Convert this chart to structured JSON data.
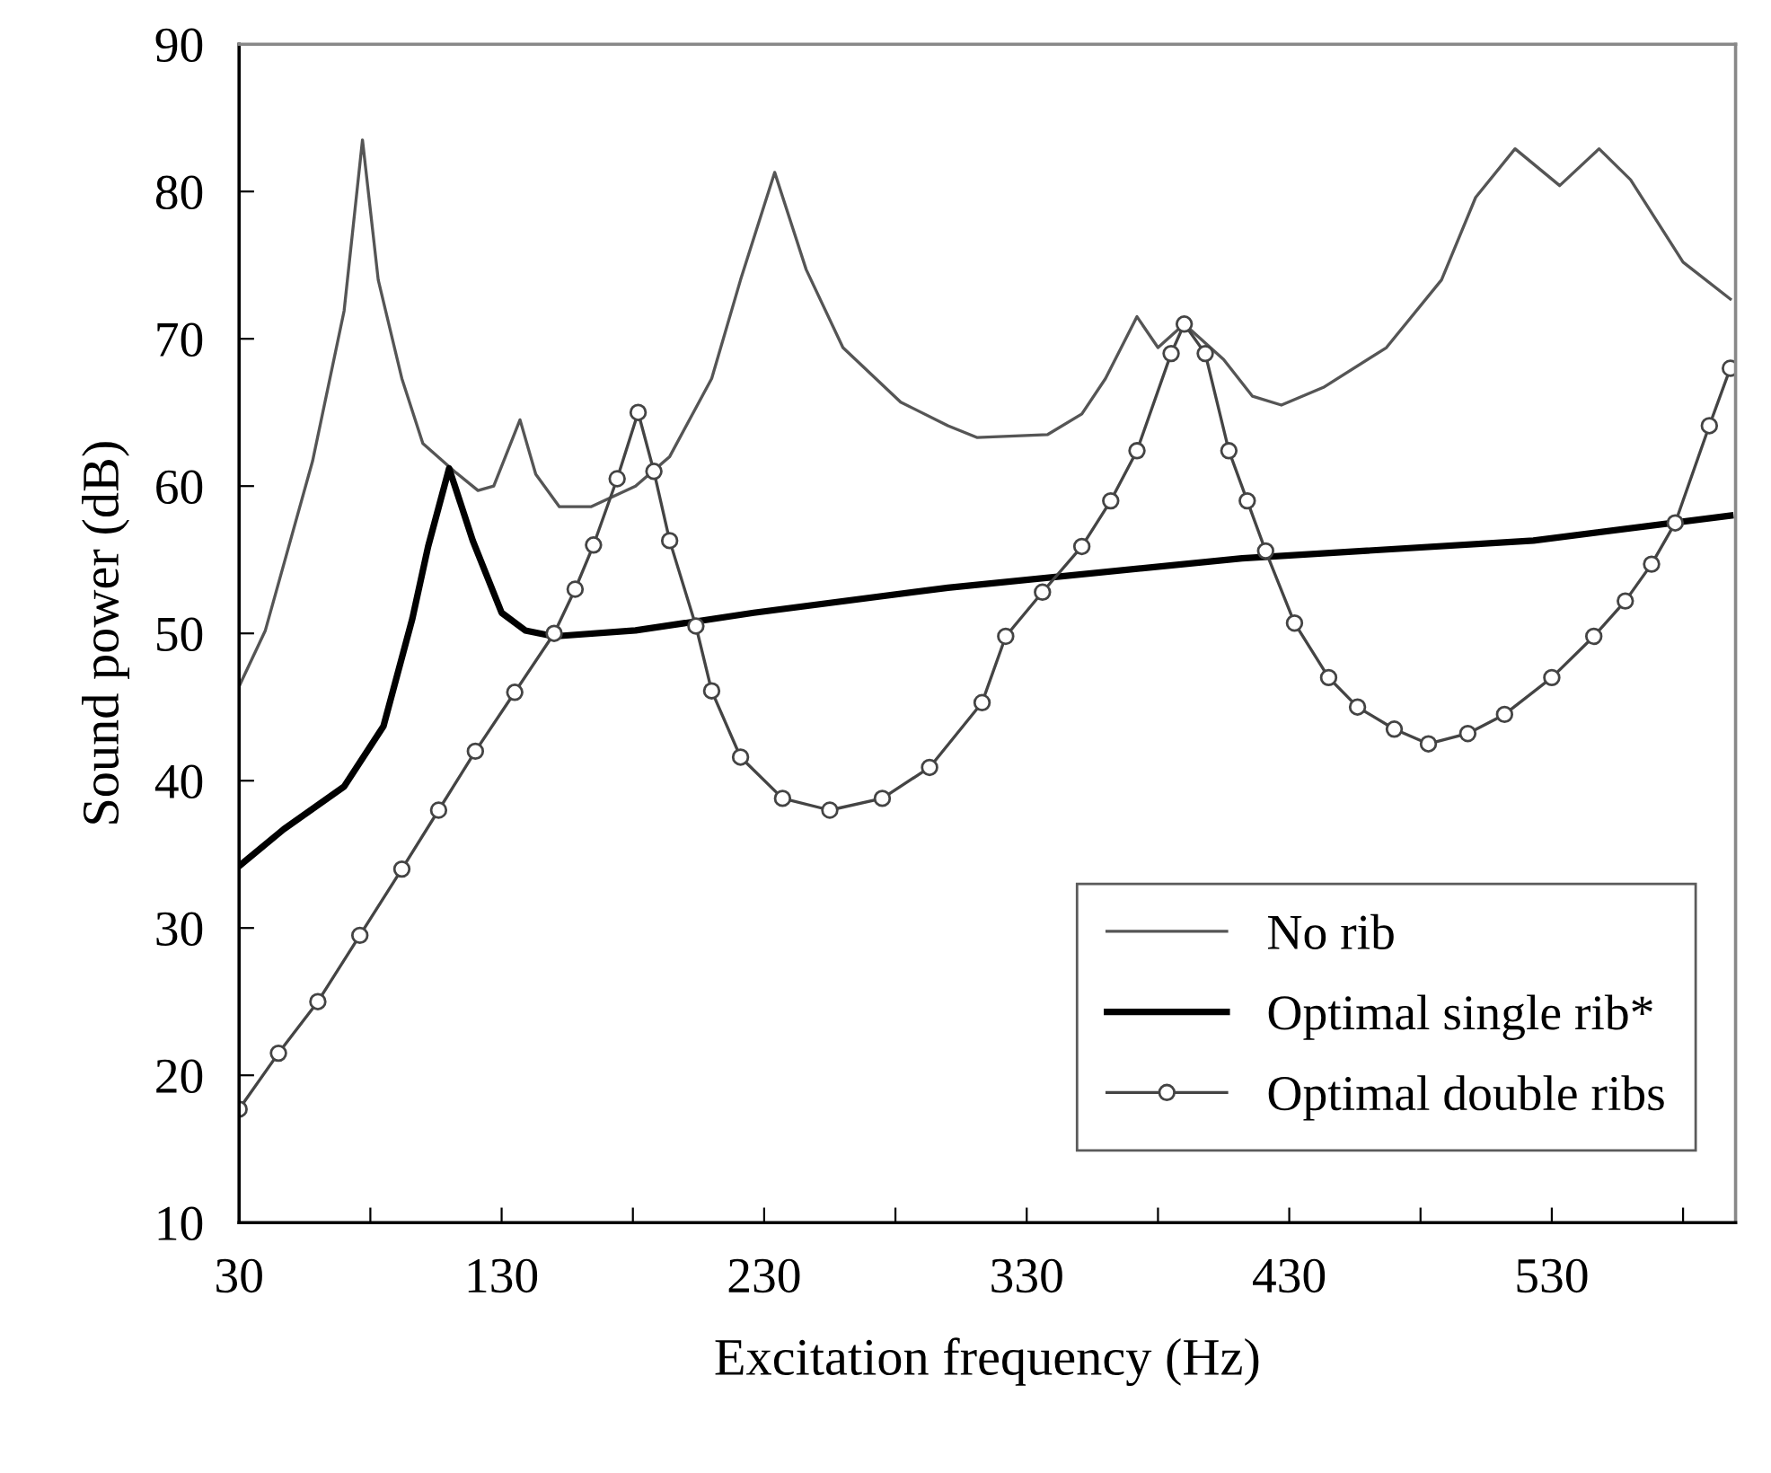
{
  "chart_data": {
    "type": "line",
    "xlabel": "Excitation frequency (Hz)",
    "ylabel": "Sound power (dB)",
    "xlim": [
      30,
      600
    ],
    "xticks": [
      30,
      {
        "value": 80,
        "label": null
      },
      130,
      {
        "value": 180,
        "label": null
      },
      230,
      {
        "value": 280,
        "label": null
      },
      330,
      {
        "value": 380,
        "label": null
      },
      430,
      {
        "value": 480,
        "label": null
      },
      530,
      {
        "value": 580,
        "label": null
      }
    ],
    "ylim": [
      10,
      90
    ],
    "yticks": [
      10,
      20,
      30,
      40,
      50,
      60,
      70,
      80,
      90
    ],
    "grid": false,
    "legend": "bottom right",
    "series": [
      {
        "name": "No rib",
        "color": "#555555",
        "marker": "none",
        "x": [
          30,
          40,
          58,
          70,
          77,
          83,
          92,
          100,
          112,
          121,
          127,
          137,
          143,
          152,
          164,
          181,
          194,
          210,
          221,
          234,
          246,
          260,
          282,
          300,
          311,
          338,
          351,
          360,
          372,
          380,
          390,
          405,
          416,
          427,
          443,
          467,
          488,
          501,
          516,
          533,
          548,
          560,
          580,
          598
        ],
        "values": [
          46.4,
          50.2,
          61.7,
          71.9,
          83.5,
          74,
          67.3,
          62.9,
          61,
          59.7,
          60,
          64.5,
          60.8,
          58.6,
          58.6,
          60,
          62,
          67.3,
          74,
          81.3,
          74.7,
          69.4,
          65.7,
          64.1,
          63.3,
          63.5,
          64.9,
          67.3,
          71.5,
          69.4,
          71,
          68.6,
          66.1,
          65.5,
          66.7,
          69.4,
          74,
          79.6,
          82.9,
          80.4,
          82.9,
          80.8,
          75.2,
          72.7
        ]
      },
      {
        "name": "Optimal single rib*",
        "color": "#000000",
        "marker": "none",
        "x": [
          30,
          47,
          70,
          85,
          96,
          102,
          110,
          119,
          130,
          139,
          150,
          181,
          226,
          300,
          412,
          523,
          598
        ],
        "values": [
          34.2,
          36.7,
          39.6,
          43.7,
          51,
          55.9,
          61.2,
          56.3,
          51.4,
          50.2,
          49.8,
          50.2,
          51.4,
          53.1,
          55.1,
          56.3,
          58
        ]
      },
      {
        "name": "Optimal double ribs",
        "color": "#444444",
        "marker": "circle",
        "x": [
          30,
          45,
          60,
          76,
          92,
          106,
          120,
          135,
          150,
          158,
          165,
          174,
          182,
          188,
          194,
          204,
          210,
          221,
          237,
          255,
          275,
          293,
          313,
          322,
          336,
          351,
          362,
          372,
          385,
          390,
          398,
          407,
          414,
          421,
          432,
          445,
          456,
          470,
          483,
          498,
          512,
          530,
          546,
          558,
          568,
          577,
          590,
          598
        ],
        "values": [
          17.7,
          21.5,
          25,
          29.5,
          34,
          38,
          42,
          46,
          50,
          53,
          56,
          60.5,
          65,
          61,
          56.3,
          50.5,
          46.1,
          41.6,
          38.8,
          38,
          38.8,
          40.9,
          45.3,
          49.8,
          52.8,
          55.9,
          59,
          62.4,
          69,
          71,
          69,
          62.4,
          59,
          55.6,
          50.7,
          47,
          45,
          43.5,
          42.5,
          43.2,
          44.5,
          47,
          49.8,
          52.2,
          54.7,
          57.5,
          64.1,
          68
        ]
      }
    ]
  }
}
